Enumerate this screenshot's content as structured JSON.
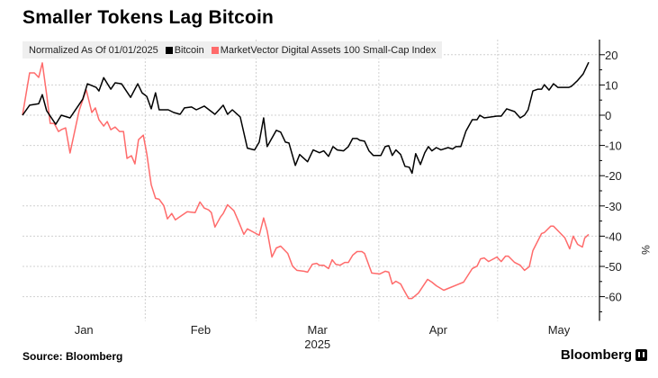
{
  "title": "Smaller Tokens Lag Bitcoin",
  "source": "Source: Bloomberg",
  "logo": "Bloomberg",
  "chart_data": {
    "type": "line",
    "title": "Smaller Tokens Lag Bitcoin",
    "subtitle": "Normalized As Of 01/01/2025",
    "xlabel": "2025",
    "ylabel": "%",
    "x_unit": "days since 2025-01-01",
    "xlim": [
      0,
      143
    ],
    "ylim": [
      -68,
      25
    ],
    "yticks": [
      20,
      10,
      0,
      -10,
      -20,
      -30,
      -40,
      -50,
      -60
    ],
    "month_labels": [
      {
        "label": "Jan",
        "day": 15.5
      },
      {
        "label": "Feb",
        "day": 45
      },
      {
        "label": "Mar",
        "day": 74.5
      },
      {
        "label": "Apr",
        "day": 105
      },
      {
        "label": "May",
        "day": 135.5
      }
    ],
    "month_boundaries": [
      31,
      59,
      90,
      120
    ],
    "year_label": "2025",
    "grid": true,
    "legend_position": "top-left",
    "series": [
      {
        "name": "Bitcoin",
        "color": "#000000",
        "points": [
          [
            0,
            0
          ],
          [
            1.8,
            3.3
          ],
          [
            4.1,
            3.8
          ],
          [
            5,
            6.8
          ],
          [
            6.1,
            1.5
          ],
          [
            8.4,
            -3
          ],
          [
            9.8,
            0
          ],
          [
            12,
            -0.9
          ],
          [
            15.2,
            5.3
          ],
          [
            16.4,
            10.4
          ],
          [
            18.6,
            9.2
          ],
          [
            19.3,
            8
          ],
          [
            20.5,
            12.4
          ],
          [
            22.3,
            8.6
          ],
          [
            23.4,
            10.7
          ],
          [
            25,
            10.4
          ],
          [
            27.3,
            5.9
          ],
          [
            29.1,
            10.4
          ],
          [
            30.2,
            7.4
          ],
          [
            31.4,
            6.2
          ],
          [
            32.5,
            2.1
          ],
          [
            33.6,
            7.4
          ],
          [
            34.5,
            1.8
          ],
          [
            36.8,
            1.8
          ],
          [
            38.2,
            0.9
          ],
          [
            39.8,
            0.3
          ],
          [
            40.9,
            2.4
          ],
          [
            42.7,
            2.7
          ],
          [
            43.9,
            1.8
          ],
          [
            45.9,
            3
          ],
          [
            48.6,
            0.3
          ],
          [
            50.7,
            3.3
          ],
          [
            51.8,
            0.3
          ],
          [
            53,
            1.8
          ],
          [
            55,
            -0.6
          ],
          [
            56.8,
            -10.9
          ],
          [
            58.6,
            -11.5
          ],
          [
            59.8,
            -8.9
          ],
          [
            60.9,
            -0.9
          ],
          [
            61.8,
            -10.4
          ],
          [
            64.1,
            -5
          ],
          [
            65.2,
            -5.6
          ],
          [
            66.4,
            -8.9
          ],
          [
            67.3,
            -9.2
          ],
          [
            68.9,
            -16.6
          ],
          [
            70,
            -13
          ],
          [
            72,
            -15.4
          ],
          [
            73.4,
            -11.5
          ],
          [
            75,
            -12.4
          ],
          [
            76.1,
            -11.8
          ],
          [
            77.3,
            -13.6
          ],
          [
            78.4,
            -10.4
          ],
          [
            79.5,
            -11.5
          ],
          [
            81.1,
            -11.8
          ],
          [
            82.3,
            -10.4
          ],
          [
            83.4,
            -7.7
          ],
          [
            84.5,
            -7.7
          ],
          [
            85.2,
            -8.3
          ],
          [
            86.4,
            -8.6
          ],
          [
            87.5,
            -11.8
          ],
          [
            88.6,
            -13.3
          ],
          [
            90.5,
            -13.3
          ],
          [
            91.6,
            -10.4
          ],
          [
            92.5,
            -10.1
          ],
          [
            93.4,
            -13.3
          ],
          [
            94.3,
            -11.5
          ],
          [
            95.5,
            -13
          ],
          [
            96.6,
            -16.9
          ],
          [
            97.7,
            -17.2
          ],
          [
            98.4,
            -19.2
          ],
          [
            99.3,
            -12.7
          ],
          [
            100.5,
            -16.3
          ],
          [
            101.6,
            -12.4
          ],
          [
            102.5,
            -10.4
          ],
          [
            103.4,
            -11.8
          ],
          [
            104.5,
            -10.7
          ],
          [
            105.7,
            -11.5
          ],
          [
            107.5,
            -10.7
          ],
          [
            108.6,
            -11.2
          ],
          [
            109.5,
            -10.4
          ],
          [
            110.7,
            -10.4
          ],
          [
            112,
            -5.3
          ],
          [
            113.6,
            -1.5
          ],
          [
            114.8,
            -1.5
          ],
          [
            115.5,
            0
          ],
          [
            116.6,
            -0.9
          ],
          [
            119.8,
            -0.3
          ],
          [
            120.9,
            -0.3
          ],
          [
            122.3,
            2.1
          ],
          [
            124.3,
            1.2
          ],
          [
            125.7,
            -0.9
          ],
          [
            126.8,
            0
          ],
          [
            127.7,
            1.8
          ],
          [
            128.9,
            8
          ],
          [
            130.2,
            8.6
          ],
          [
            131.1,
            8.6
          ],
          [
            131.8,
            10.1
          ],
          [
            133,
            8.3
          ],
          [
            134.1,
            10.4
          ],
          [
            135.2,
            9.2
          ],
          [
            138,
            9.2
          ],
          [
            138.6,
            9.5
          ],
          [
            140.2,
            11.5
          ],
          [
            141.6,
            13.6
          ],
          [
            143,
            17.5
          ]
        ]
      },
      {
        "name": "MarketVector Digital Assets 100 Small-Cap Index",
        "color": "#ff6b6b",
        "points": [
          [
            0,
            0
          ],
          [
            1.8,
            14
          ],
          [
            3,
            14
          ],
          [
            4.1,
            12.5
          ],
          [
            5,
            17.3
          ],
          [
            6.1,
            6.9
          ],
          [
            7,
            -2.7
          ],
          [
            8,
            -2.7
          ],
          [
            9.1,
            -5.4
          ],
          [
            9.8,
            -4.8
          ],
          [
            10.9,
            -4.2
          ],
          [
            12,
            -12.5
          ],
          [
            14.3,
            1.5
          ],
          [
            16.1,
            8.4
          ],
          [
            17.5,
            0.9
          ],
          [
            18.4,
            2.4
          ],
          [
            19.3,
            -1.5
          ],
          [
            20.5,
            -3.6
          ],
          [
            21.4,
            -2.1
          ],
          [
            22.3,
            -4.8
          ],
          [
            23.4,
            -3.9
          ],
          [
            24.5,
            -5.4
          ],
          [
            25.5,
            -5.4
          ],
          [
            26.4,
            -14.3
          ],
          [
            27.5,
            -13.4
          ],
          [
            28.4,
            -16.1
          ],
          [
            29.3,
            -8.1
          ],
          [
            30.5,
            -6.6
          ],
          [
            31.4,
            -12.8
          ],
          [
            32.5,
            -23
          ],
          [
            33.6,
            -27.5
          ],
          [
            34.5,
            -27.8
          ],
          [
            35.7,
            -29.9
          ],
          [
            36.6,
            -34.3
          ],
          [
            37.7,
            -32.5
          ],
          [
            38.6,
            -34.6
          ],
          [
            41.6,
            -31.9
          ],
          [
            43.6,
            -32.2
          ],
          [
            44.8,
            -28.7
          ],
          [
            45.9,
            -30.7
          ],
          [
            47,
            -31.3
          ],
          [
            47.7,
            -32.2
          ],
          [
            48.6,
            -37
          ],
          [
            50,
            -33.7
          ],
          [
            50.7,
            -32.5
          ],
          [
            51.8,
            -29.6
          ],
          [
            53.4,
            -31.6
          ],
          [
            54.5,
            -34.9
          ],
          [
            55.9,
            -39.4
          ],
          [
            56.8,
            -37.6
          ],
          [
            59.8,
            -39.7
          ],
          [
            60.9,
            -34
          ],
          [
            61.8,
            -38.2
          ],
          [
            63,
            -46.9
          ],
          [
            64.1,
            -43.9
          ],
          [
            65.2,
            -43.3
          ],
          [
            67,
            -45.7
          ],
          [
            68.2,
            -49.9
          ],
          [
            69.3,
            -51.3
          ],
          [
            71.1,
            -51.6
          ],
          [
            72,
            -51.9
          ],
          [
            73.2,
            -49.3
          ],
          [
            74.3,
            -49
          ],
          [
            75,
            -49.6
          ],
          [
            76.1,
            -49.6
          ],
          [
            77.3,
            -50.7
          ],
          [
            78.2,
            -47.8
          ],
          [
            79.1,
            -49.3
          ],
          [
            80.2,
            -49.6
          ],
          [
            81.4,
            -48.7
          ],
          [
            82.3,
            -48.7
          ],
          [
            83.4,
            -46.3
          ],
          [
            84.5,
            -45.1
          ],
          [
            85.7,
            -45.1
          ],
          [
            86.4,
            -45.7
          ],
          [
            88.2,
            -52.2
          ],
          [
            90.2,
            -52.5
          ],
          [
            91.6,
            -51.6
          ],
          [
            92.5,
            -51.9
          ],
          [
            93.4,
            -55.8
          ],
          [
            94.3,
            -54.9
          ],
          [
            95.5,
            -55.8
          ],
          [
            96.1,
            -57.3
          ],
          [
            97.5,
            -60.6
          ],
          [
            98.4,
            -60.6
          ],
          [
            100,
            -58.8
          ],
          [
            102.3,
            -54.3
          ],
          [
            103.4,
            -55.2
          ],
          [
            104.5,
            -56.4
          ],
          [
            106.4,
            -57.9
          ],
          [
            107.5,
            -57.3
          ],
          [
            111.4,
            -55.2
          ],
          [
            113.6,
            -50.7
          ],
          [
            114.8,
            -49.9
          ],
          [
            115.7,
            -47.5
          ],
          [
            116.6,
            -47.2
          ],
          [
            117.7,
            -48.4
          ],
          [
            119.8,
            -46.9
          ],
          [
            120.9,
            -48.4
          ],
          [
            122,
            -46.6
          ],
          [
            122.7,
            -46.6
          ],
          [
            124.3,
            -48.7
          ],
          [
            125.7,
            -49.6
          ],
          [
            126.8,
            -51.3
          ],
          [
            128,
            -50.1
          ],
          [
            128.9,
            -44.8
          ],
          [
            131.1,
            -39.1
          ],
          [
            131.8,
            -38.8
          ],
          [
            133.4,
            -36.7
          ],
          [
            134.1,
            -36.7
          ],
          [
            135.9,
            -39.1
          ],
          [
            137,
            -40.6
          ],
          [
            138.2,
            -44.2
          ],
          [
            139.1,
            -40
          ],
          [
            140.2,
            -42.7
          ],
          [
            141.4,
            -43.6
          ],
          [
            142,
            -40.6
          ],
          [
            143,
            -39.4
          ]
        ]
      }
    ]
  }
}
